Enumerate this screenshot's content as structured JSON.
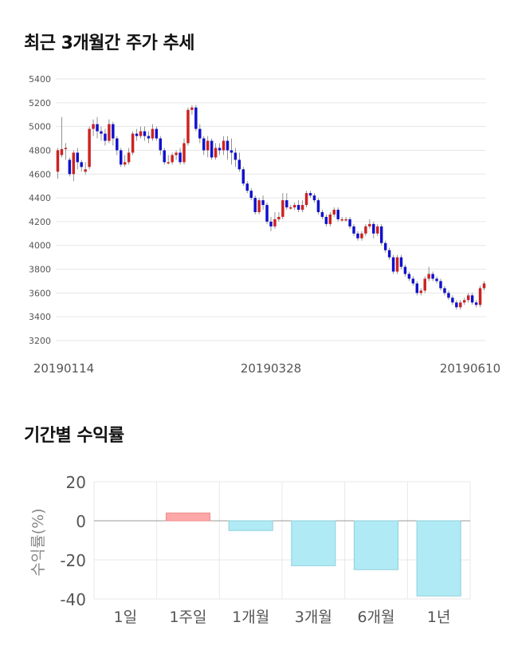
{
  "section1": {
    "title": "최근 3개월간 주가 추세"
  },
  "section2": {
    "title": "기간별 수익률"
  },
  "chart_data": [
    {
      "type": "candlestick",
      "y_ticks": [
        5400,
        5200,
        5000,
        4800,
        4600,
        4400,
        4200,
        4000,
        3800,
        3600,
        3400,
        3200
      ],
      "ylim": [
        3200,
        5400
      ],
      "x_labels": [
        "20190114",
        "20190328",
        "20190610"
      ],
      "grid": true,
      "up_color": "#cc2222",
      "down_color": "#1111cc",
      "candles": [
        [
          4620,
          4800,
          4560,
          4820
        ],
        [
          4760,
          4810,
          4740,
          5080
        ],
        [
          4820,
          4820,
          4720,
          4860
        ],
        [
          4720,
          4600,
          4580,
          4740
        ],
        [
          4600,
          4780,
          4540,
          4800
        ],
        [
          4780,
          4700,
          4640,
          4820
        ],
        [
          4700,
          4660,
          4620,
          4720
        ],
        [
          4620,
          4640,
          4600,
          4700
        ],
        [
          4660,
          4980,
          4640,
          5000
        ],
        [
          4980,
          5020,
          4920,
          5060
        ],
        [
          5020,
          4960,
          4900,
          5080
        ],
        [
          4960,
          4940,
          4880,
          5000
        ],
        [
          4940,
          4880,
          4840,
          4980
        ],
        [
          4880,
          5020,
          4860,
          5060
        ],
        [
          5020,
          4900,
          4840,
          5040
        ],
        [
          4900,
          4800,
          4760,
          4920
        ],
        [
          4800,
          4680,
          4660,
          4820
        ],
        [
          4680,
          4700,
          4660,
          4760
        ],
        [
          4700,
          4780,
          4680,
          4820
        ],
        [
          4780,
          4940,
          4760,
          4960
        ],
        [
          4940,
          4920,
          4880,
          4980
        ],
        [
          4920,
          4960,
          4900,
          5000
        ],
        [
          4960,
          4920,
          4880,
          5000
        ],
        [
          4920,
          4900,
          4860,
          4960
        ],
        [
          4900,
          4980,
          4880,
          5020
        ],
        [
          4980,
          4900,
          4880,
          5000
        ],
        [
          4900,
          4800,
          4760,
          4920
        ],
        [
          4800,
          4700,
          4680,
          4820
        ],
        [
          4700,
          4700,
          4680,
          4760
        ],
        [
          4700,
          4760,
          4680,
          4780
        ],
        [
          4760,
          4780,
          4720,
          4800
        ],
        [
          4780,
          4700,
          4680,
          4820
        ],
        [
          4700,
          4860,
          4680,
          4900
        ],
        [
          4860,
          5140,
          4840,
          5160
        ],
        [
          5140,
          5160,
          5100,
          5180
        ],
        [
          5160,
          4980,
          4960,
          5180
        ],
        [
          4980,
          4900,
          4860,
          5020
        ],
        [
          4900,
          4800,
          4760,
          4920
        ],
        [
          4800,
          4880,
          4740,
          4920
        ],
        [
          4880,
          4740,
          4720,
          4900
        ],
        [
          4740,
          4820,
          4720,
          4860
        ],
        [
          4820,
          4800,
          4760,
          4860
        ],
        [
          4800,
          4880,
          4760,
          4920
        ],
        [
          4880,
          4800,
          4720,
          4920
        ],
        [
          4800,
          4780,
          4680,
          4900
        ],
        [
          4780,
          4720,
          4660,
          4820
        ],
        [
          4720,
          4640,
          4620,
          4780
        ],
        [
          4640,
          4520,
          4500,
          4660
        ],
        [
          4520,
          4460,
          4440,
          4540
        ],
        [
          4460,
          4400,
          4380,
          4480
        ],
        [
          4400,
          4280,
          4260,
          4420
        ],
        [
          4280,
          4380,
          4260,
          4400
        ],
        [
          4380,
          4340,
          4300,
          4420
        ],
        [
          4340,
          4200,
          4180,
          4360
        ],
        [
          4200,
          4160,
          4120,
          4240
        ],
        [
          4160,
          4220,
          4140,
          4280
        ],
        [
          4220,
          4240,
          4200,
          4280
        ],
        [
          4240,
          4380,
          4220,
          4440
        ],
        [
          4380,
          4320,
          4300,
          4440
        ],
        [
          4320,
          4320,
          4300,
          4340
        ],
        [
          4320,
          4340,
          4300,
          4360
        ],
        [
          4340,
          4300,
          4280,
          4380
        ],
        [
          4300,
          4340,
          4280,
          4380
        ],
        [
          4340,
          4440,
          4320,
          4460
        ],
        [
          4440,
          4420,
          4400,
          4460
        ],
        [
          4420,
          4380,
          4360,
          4440
        ],
        [
          4380,
          4280,
          4260,
          4400
        ],
        [
          4280,
          4240,
          4220,
          4300
        ],
        [
          4240,
          4180,
          4160,
          4260
        ],
        [
          4180,
          4260,
          4160,
          4280
        ],
        [
          4260,
          4300,
          4240,
          4320
        ],
        [
          4300,
          4220,
          4200,
          4320
        ],
        [
          4220,
          4220,
          4200,
          4240
        ],
        [
          4220,
          4220,
          4200,
          4240
        ],
        [
          4220,
          4160,
          4140,
          4240
        ],
        [
          4160,
          4100,
          4080,
          4180
        ],
        [
          4100,
          4060,
          4040,
          4120
        ],
        [
          4060,
          4100,
          4040,
          4120
        ],
        [
          4100,
          4160,
          4080,
          4180
        ],
        [
          4160,
          4180,
          4140,
          4220
        ],
        [
          4180,
          4100,
          4060,
          4200
        ],
        [
          4100,
          4160,
          4080,
          4180
        ],
        [
          4160,
          4020,
          4000,
          4180
        ],
        [
          4020,
          3960,
          3940,
          4040
        ],
        [
          3960,
          3900,
          3880,
          3980
        ],
        [
          3900,
          3780,
          3760,
          3920
        ],
        [
          3780,
          3900,
          3760,
          3920
        ],
        [
          3900,
          3820,
          3800,
          3920
        ],
        [
          3820,
          3760,
          3740,
          3840
        ],
        [
          3760,
          3720,
          3700,
          3780
        ],
        [
          3720,
          3680,
          3660,
          3740
        ],
        [
          3680,
          3600,
          3580,
          3700
        ],
        [
          3600,
          3620,
          3580,
          3640
        ],
        [
          3620,
          3720,
          3600,
          3740
        ],
        [
          3720,
          3760,
          3700,
          3820
        ],
        [
          3760,
          3720,
          3700,
          3780
        ],
        [
          3720,
          3700,
          3680,
          3740
        ],
        [
          3700,
          3640,
          3620,
          3720
        ],
        [
          3640,
          3600,
          3580,
          3660
        ],
        [
          3600,
          3560,
          3540,
          3620
        ],
        [
          3560,
          3520,
          3500,
          3580
        ],
        [
          3520,
          3480,
          3460,
          3540
        ],
        [
          3480,
          3520,
          3460,
          3540
        ],
        [
          3520,
          3540,
          3500,
          3560
        ],
        [
          3540,
          3580,
          3520,
          3600
        ],
        [
          3580,
          3520,
          3500,
          3600
        ],
        [
          3520,
          3500,
          3480,
          3540
        ],
        [
          3500,
          3640,
          3480,
          3660
        ],
        [
          3640,
          3680,
          3620,
          3700
        ]
      ]
    },
    {
      "type": "bar",
      "categories": [
        "1일",
        "1주일",
        "1개월",
        "3개월",
        "6개월",
        "1년"
      ],
      "values": [
        0,
        4,
        -5,
        -23,
        -25,
        -38.5
      ],
      "ylabel": "수익률(%)",
      "y_ticks": [
        20,
        0,
        -20,
        -40
      ],
      "ylim": [
        -40,
        20
      ],
      "grid": true,
      "positive_color": "#ffa8a8",
      "negative_color": "#b0eaf4"
    }
  ]
}
